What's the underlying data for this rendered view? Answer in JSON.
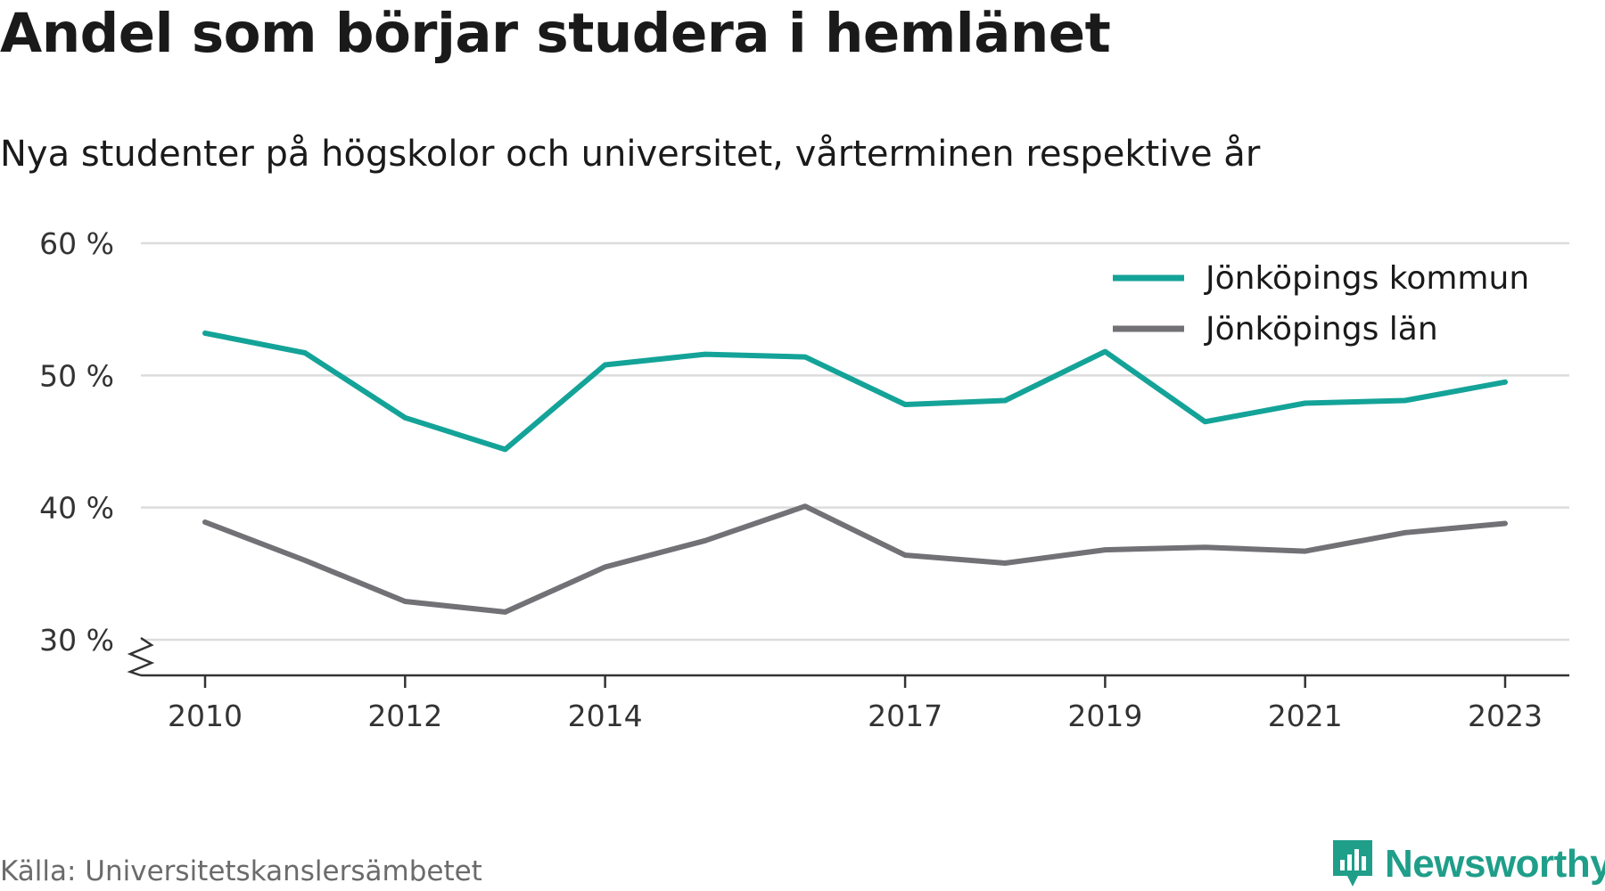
{
  "title": "Andel som börjar studera i hemlänet",
  "subtitle": "Nya studenter på högskolor och universitet, vårterminen respektive år",
  "source": "Källa: Universitetskanslersämbetet",
  "logo": {
    "text": "Newsworthy",
    "icon": "bar-chart-pin-icon"
  },
  "colors": {
    "kommun": "#14a398",
    "lan": "#727176",
    "grid": "#dcdcdc",
    "axis": "#333333"
  },
  "chart_data": {
    "type": "line",
    "title": "Andel som börjar studera i hemlänet",
    "subtitle": "Nya studenter på högskolor och universitet, vårterminen respektive år",
    "x": [
      2010,
      2011,
      2012,
      2013,
      2014,
      2015,
      2016,
      2017,
      2018,
      2019,
      2020,
      2021,
      2022,
      2023
    ],
    "x_tick_values": [
      2010,
      2012,
      2014,
      2017,
      2019,
      2021,
      2023
    ],
    "x_tick_labels": [
      "2010",
      "2012",
      "2014",
      "2017",
      "2019",
      "2021",
      "2023"
    ],
    "y_tick_values": [
      30,
      40,
      50,
      60
    ],
    "y_tick_labels": [
      "30 %",
      "40 %",
      "50 %",
      "60 %"
    ],
    "ylim": [
      30,
      60
    ],
    "y_axis_break": true,
    "grid": true,
    "legend_position": "top-right",
    "series": [
      {
        "name": "Jönköpings kommun",
        "color": "#14a398",
        "values": [
          53.2,
          51.7,
          46.8,
          44.4,
          50.8,
          51.6,
          51.4,
          47.8,
          48.1,
          51.8,
          46.5,
          47.9,
          48.1,
          49.5
        ]
      },
      {
        "name": "Jönköpings län",
        "color": "#727176",
        "values": [
          38.9,
          36.0,
          32.9,
          32.1,
          35.5,
          37.5,
          40.1,
          36.4,
          35.8,
          36.8,
          37.0,
          36.7,
          38.1,
          38.8
        ]
      }
    ]
  }
}
